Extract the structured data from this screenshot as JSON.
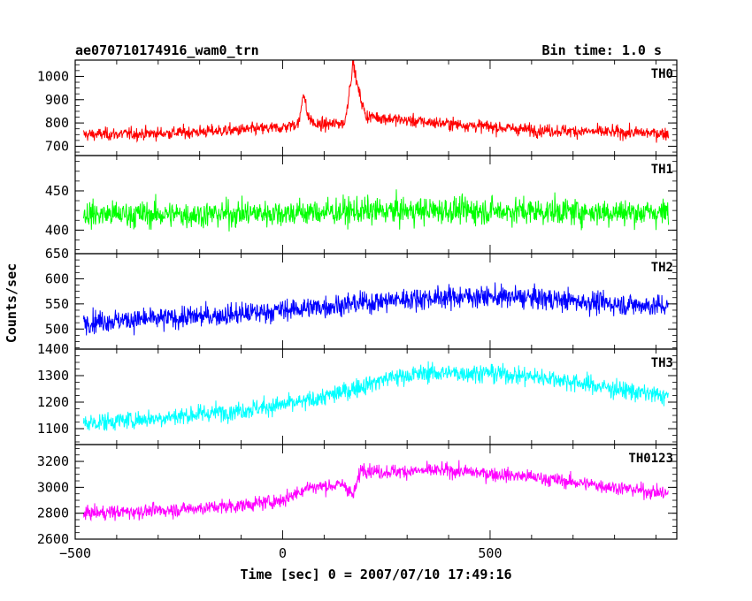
{
  "chart_data": {
    "type": "line",
    "title": "ae070710174916_wam0_trn",
    "subtitle": "Bin time: 1.0 s",
    "xlabel": "Time [sec] 0 = 2007/07/10 17:49:16",
    "ylabel": "Counts/sec",
    "x_range": [
      -500,
      950
    ],
    "x_ticks": [
      -500,
      0,
      500
    ],
    "x_tick_labels": [
      "−500",
      "0",
      "500"
    ],
    "data_x_range": [
      -480,
      930
    ],
    "grid": false,
    "panels": [
      {
        "name": "TH0",
        "color": "#ff0000",
        "ylim": [
          660,
          1070
        ],
        "y_ticks": [
          700,
          800,
          900,
          1000
        ],
        "y_tick_labels": [
          "700",
          "800",
          "900",
          "1000"
        ],
        "trend_points": [
          [
            -480,
            750
          ],
          [
            -300,
            755
          ],
          [
            -100,
            770
          ],
          [
            0,
            780
          ],
          [
            40,
            800
          ],
          [
            50,
            940
          ],
          [
            60,
            830
          ],
          [
            80,
            790
          ],
          [
            150,
            800
          ],
          [
            170,
            1060
          ],
          [
            180,
            960
          ],
          [
            200,
            830
          ],
          [
            300,
            810
          ],
          [
            450,
            790
          ],
          [
            600,
            770
          ],
          [
            800,
            760
          ],
          [
            930,
            755
          ]
        ],
        "noise": 35
      },
      {
        "name": "TH1",
        "color": "#00ff00",
        "ylim": [
          370,
          495
        ],
        "y_ticks": [
          400,
          450
        ],
        "y_tick_labels": [
          "400",
          "450"
        ],
        "trend_points": [
          [
            -480,
            420
          ],
          [
            -200,
            420
          ],
          [
            0,
            422
          ],
          [
            200,
            424
          ],
          [
            400,
            425
          ],
          [
            600,
            424
          ],
          [
            800,
            423
          ],
          [
            930,
            422
          ]
        ],
        "noise": 22
      },
      {
        "name": "TH2",
        "color": "#0000ff",
        "ylim": [
          460,
          650
        ],
        "y_ticks": [
          500,
          550,
          600,
          650
        ],
        "y_tick_labels": [
          "500",
          "550",
          "600",
          "650"
        ],
        "trend_points": [
          [
            -480,
            515
          ],
          [
            -300,
            520
          ],
          [
            -100,
            530
          ],
          [
            100,
            545
          ],
          [
            300,
            560
          ],
          [
            450,
            565
          ],
          [
            600,
            562
          ],
          [
            800,
            550
          ],
          [
            930,
            545
          ]
        ],
        "noise": 28
      },
      {
        "name": "TH3",
        "color": "#00ffff",
        "ylim": [
          1040,
          1400
        ],
        "y_ticks": [
          1100,
          1200,
          1300,
          1400
        ],
        "y_tick_labels": [
          "1100",
          "1200",
          "1300",
          "1400"
        ],
        "trend_points": [
          [
            -480,
            1120
          ],
          [
            -300,
            1140
          ],
          [
            -100,
            1170
          ],
          [
            50,
            1200
          ],
          [
            150,
            1240
          ],
          [
            250,
            1290
          ],
          [
            350,
            1310
          ],
          [
            500,
            1310
          ],
          [
            650,
            1290
          ],
          [
            800,
            1250
          ],
          [
            930,
            1220
          ]
        ],
        "noise": 45
      },
      {
        "name": "TH0123",
        "color": "#ff00ff",
        "ylim": [
          2600,
          3330
        ],
        "y_ticks": [
          2600,
          2800,
          3000,
          3200
        ],
        "y_tick_labels": [
          "2600",
          "2800",
          "3000",
          "3200"
        ],
        "trend_points": [
          [
            -480,
            2800
          ],
          [
            -300,
            2820
          ],
          [
            -100,
            2860
          ],
          [
            0,
            2900
          ],
          [
            60,
            3000
          ],
          [
            150,
            3020
          ],
          [
            170,
            2930
          ],
          [
            190,
            3150
          ],
          [
            230,
            3120
          ],
          [
            400,
            3130
          ],
          [
            600,
            3080
          ],
          [
            800,
            3000
          ],
          [
            930,
            2950
          ]
        ],
        "noise": 70
      }
    ]
  }
}
